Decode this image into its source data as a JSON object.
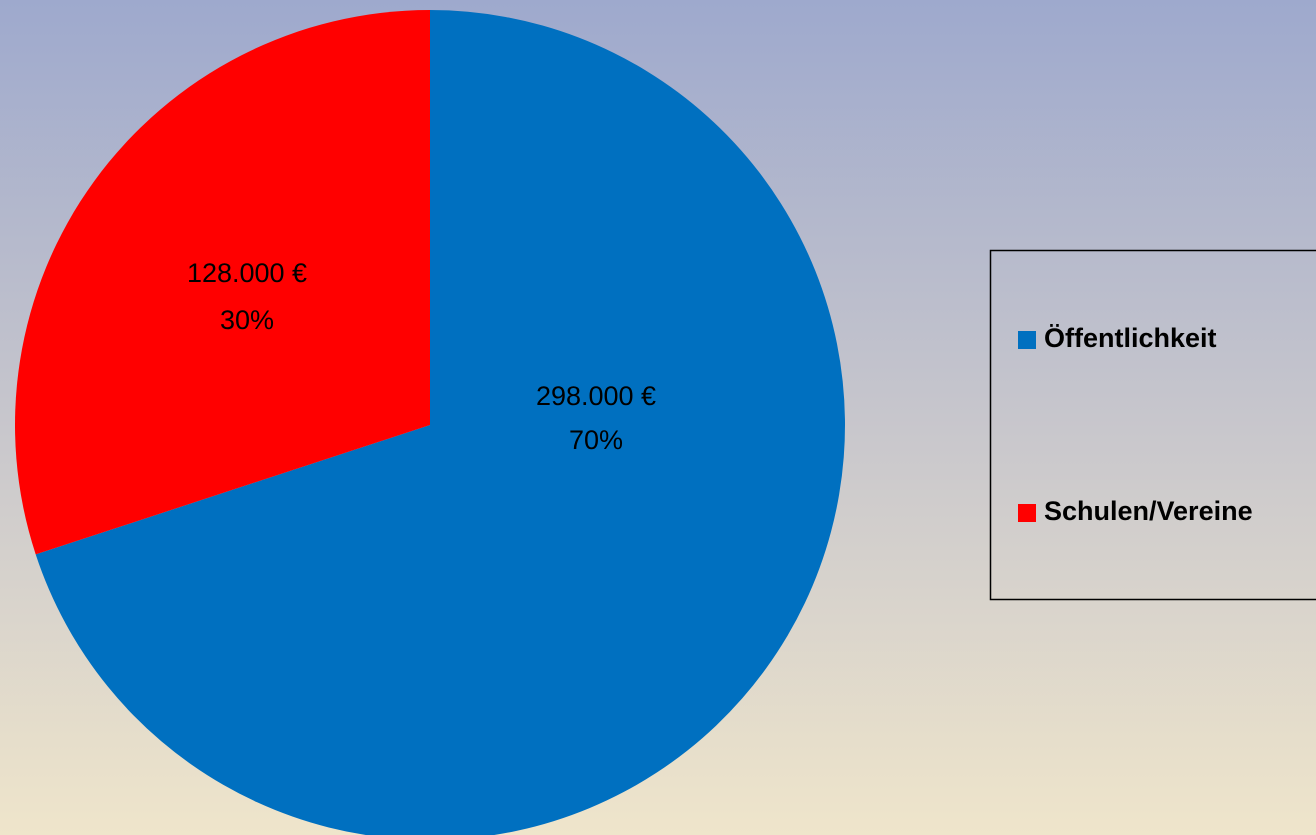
{
  "chart_data": {
    "type": "pie",
    "categories": [
      "Öffentlichkeit",
      "Schulen/Vereine"
    ],
    "values": [
      298000,
      128000
    ],
    "value_labels": [
      "298.000 €",
      "128.000 €"
    ],
    "percent_labels": [
      "70%",
      "30%"
    ],
    "colors": [
      "#0070c0",
      "#ff0000"
    ],
    "legend": "right"
  }
}
